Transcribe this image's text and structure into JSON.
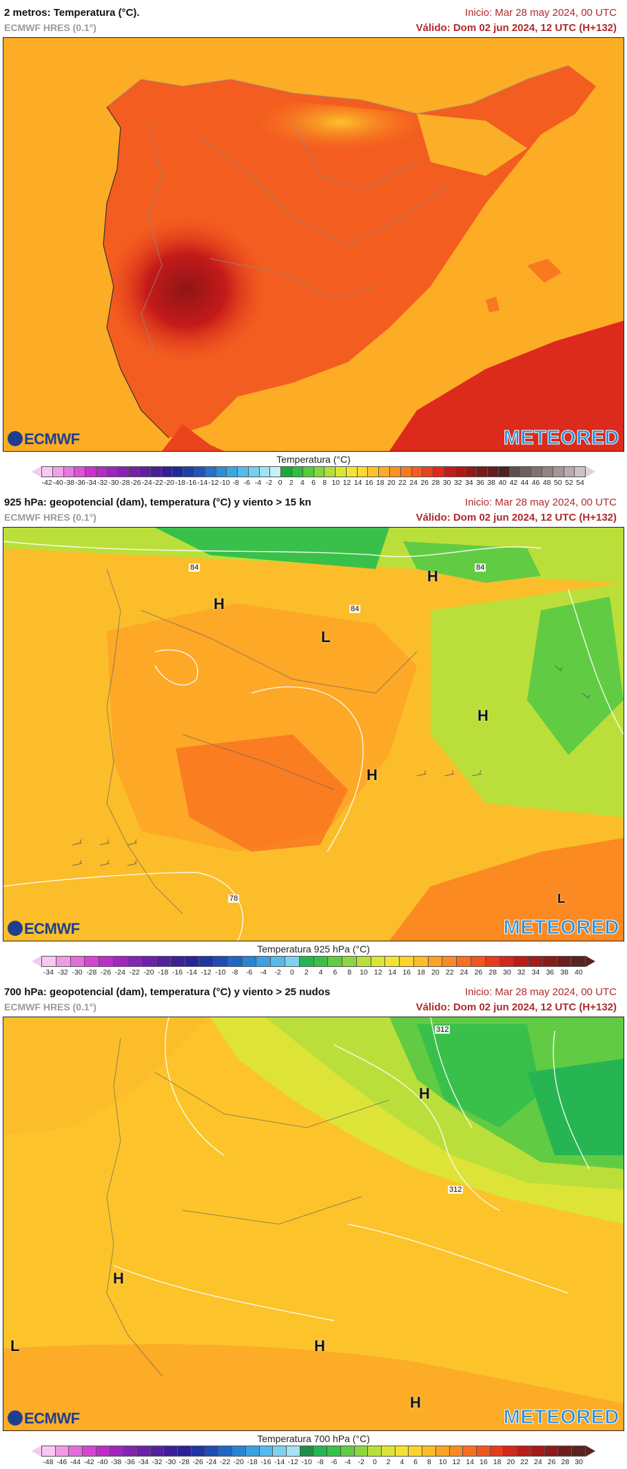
{
  "panels": [
    {
      "title": "2 metros: Temperatura (°C).",
      "model": "ECMWF HRES (0.1°)",
      "init": "Inicio: Mar 28 may 2024, 00 UTC",
      "valid": "Válido: Dom 02 jun 2024, 12 UTC (H+132)",
      "legend_title": "Temperatura (°C)",
      "legend_ticks": [
        "-42",
        "-40",
        "-38",
        "-36",
        "-34",
        "-32",
        "-30",
        "-28",
        "-26",
        "-24",
        "-22",
        "-20",
        "-18",
        "-16",
        "-14",
        "-12",
        "-10",
        "-8",
        "-6",
        "-4",
        "-2",
        "0",
        "2",
        "4",
        "6",
        "8",
        "10",
        "12",
        "14",
        "16",
        "18",
        "20",
        "22",
        "24",
        "26",
        "28",
        "30",
        "32",
        "34",
        "36",
        "38",
        "40",
        "42",
        "44",
        "46",
        "48",
        "50",
        "52",
        "54"
      ],
      "legend_colors": [
        "#f7c8f0",
        "#f2a0e8",
        "#e878df",
        "#de50d6",
        "#cc33cc",
        "#b52ac3",
        "#9c25ba",
        "#8a22b0",
        "#7420a8",
        "#5f1fa0",
        "#4a1e98",
        "#331d94",
        "#1e2a98",
        "#1d3fa8",
        "#1f55b8",
        "#2472c9",
        "#2b8fd8",
        "#3aa7e2",
        "#55bdea",
        "#72d1f0",
        "#9ee3f5",
        "#c6f0f7",
        "#1da83c",
        "#2cbf3d",
        "#56cc3d",
        "#84d63a",
        "#b1e037",
        "#d9e635",
        "#f1e533",
        "#fbd92f",
        "#fcc42a",
        "#fcac25",
        "#fb9322",
        "#f97920",
        "#f35d1f",
        "#ea431e",
        "#dc2b1c",
        "#c51a1a",
        "#ad1717",
        "#931818",
        "#7a1a1a",
        "#641c1c",
        "#502020",
        "#5e4f4f",
        "#6e6060",
        "#807171",
        "#928484",
        "#a49797",
        "#b8acac",
        "#cbc3c3"
      ],
      "labels": [],
      "contour_labels": []
    },
    {
      "title": "925 hPa: geopotencial (dam), temperatura (°C) y viento > 15 kn",
      "model": "ECMWF HRES (0.1°)",
      "init": "Inicio: Mar 28 may 2024, 00 UTC",
      "valid": "Válido: Dom 02 jun 2024, 12 UTC (H+132)",
      "legend_title": "Temperatura 925 hPa (°C)",
      "legend_ticks": [
        "-34",
        "-32",
        "-30",
        "-28",
        "-26",
        "-24",
        "-22",
        "-20",
        "-18",
        "-16",
        "-14",
        "-12",
        "-10",
        "-8",
        "-6",
        "-4",
        "-2",
        "0",
        "2",
        "4",
        "6",
        "8",
        "10",
        "12",
        "14",
        "16",
        "18",
        "20",
        "22",
        "24",
        "26",
        "28",
        "30",
        "32",
        "34",
        "36",
        "38",
        "40"
      ],
      "legend_colors": [
        "#f7c8f0",
        "#f09ae6",
        "#e46ddc",
        "#d644d2",
        "#bd2ec8",
        "#a027be",
        "#8424b3",
        "#6b21aa",
        "#5420a2",
        "#3e1f99",
        "#2a2296",
        "#1e36a3",
        "#1e4cb2",
        "#2266c4",
        "#2a84d4",
        "#3aa0df",
        "#56baea",
        "#7fd0ef",
        "#26b552",
        "#39c04a",
        "#62cb44",
        "#8fd63e",
        "#bbdf3a",
        "#dde437",
        "#f3e233",
        "#fbd42f",
        "#fcbd2a",
        "#fca326",
        "#fb8a23",
        "#f86f20",
        "#f1551e",
        "#e63c1d",
        "#d4261c",
        "#bd1b1b",
        "#a51a1a",
        "#8c1c1c",
        "#6f1e1e",
        "#5a2222"
      ],
      "labels": [
        "H",
        "L",
        "H",
        "H",
        "H",
        "L"
      ],
      "contour_labels": [
        "84",
        "84",
        "84",
        "78"
      ]
    },
    {
      "title": "700 hPa: geopotencial (dam), temperatura (°C) y viento > 25 nudos",
      "model": "ECMWF HRES (0.1°)",
      "init": "Inicio: Mar 28 may 2024, 00 UTC",
      "valid": "Válido: Dom 02 jun 2024, 12 UTC (H+132)",
      "legend_title": "Temperatura 700 hPa (°C)",
      "legend_ticks": [
        "-48",
        "-46",
        "-44",
        "-42",
        "-40",
        "-38",
        "-36",
        "-34",
        "-32",
        "-30",
        "-28",
        "-26",
        "-24",
        "-22",
        "-20",
        "-18",
        "-16",
        "-14",
        "-12",
        "-10",
        "-8",
        "-6",
        "-4",
        "-2",
        "0",
        "2",
        "4",
        "6",
        "8",
        "10",
        "12",
        "14",
        "16",
        "18",
        "20",
        "22",
        "24",
        "26",
        "28",
        "30"
      ],
      "legend_colors": [
        "#f7c8f0",
        "#f09ae6",
        "#e46ddc",
        "#d644d2",
        "#bd2ec8",
        "#a027be",
        "#8424b3",
        "#6b21aa",
        "#5420a2",
        "#3e1f99",
        "#2a2296",
        "#1e36a3",
        "#1e4cb2",
        "#2266c4",
        "#2a84d4",
        "#3aa0df",
        "#56baea",
        "#7fd0ef",
        "#a8e2f4",
        "#1f8f4a",
        "#26b552",
        "#39c04a",
        "#62cb44",
        "#8fd63e",
        "#bbdf3a",
        "#dde437",
        "#f3e233",
        "#fbd42f",
        "#fcbd2a",
        "#fca326",
        "#fb8a23",
        "#f86f20",
        "#f1551e",
        "#e63c1d",
        "#d4261c",
        "#bd1b1b",
        "#a51a1a",
        "#8c1c1c",
        "#6f1e1e",
        "#5a2222"
      ],
      "labels": [
        "H",
        "H",
        "L",
        "H",
        "H"
      ],
      "contour_labels": [
        "312",
        "312"
      ]
    }
  ],
  "logos": {
    "left": "ECMWF",
    "right": "METEORED"
  }
}
